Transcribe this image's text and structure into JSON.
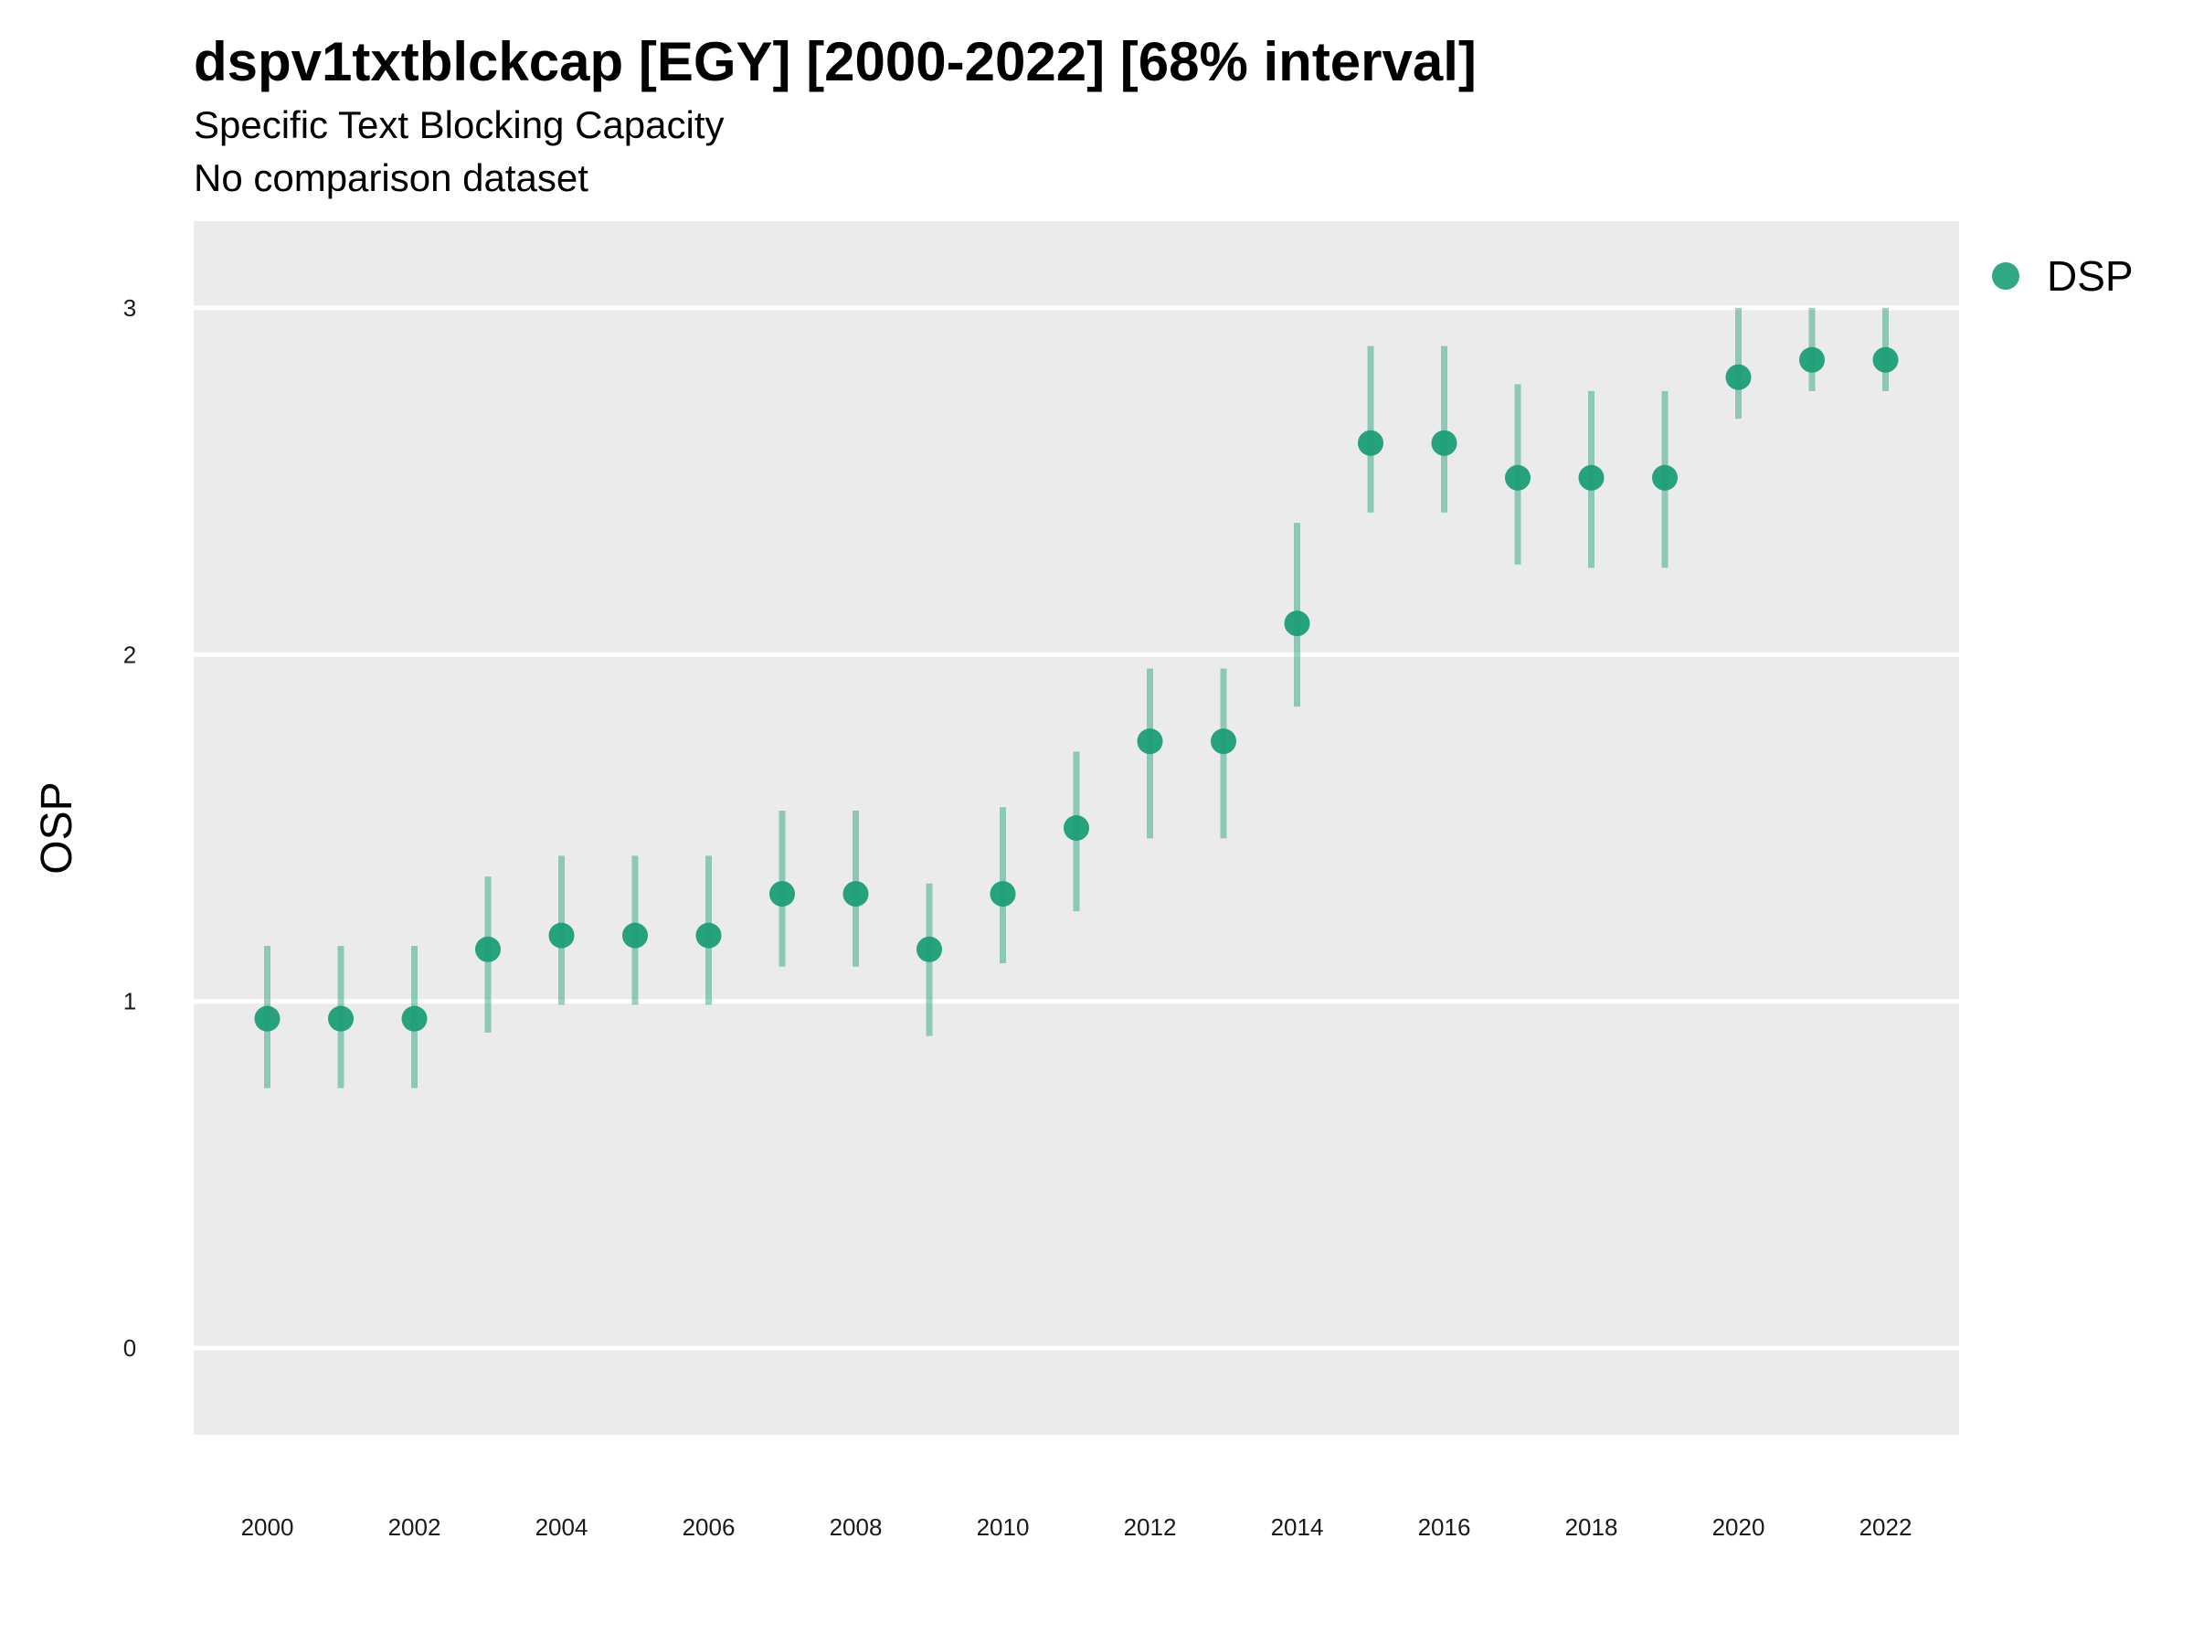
{
  "chart_data": {
    "type": "scatter",
    "title": "dspv1txtblckcap [EGY] [2000-2022] [68% interval]",
    "subtitle": "Specific Text Blocking Capacity",
    "caption": "No comparison dataset",
    "xlabel": "",
    "ylabel": "OSP",
    "x_ticks": [
      "2000",
      "2002",
      "2004",
      "2006",
      "2008",
      "2010",
      "2012",
      "2014",
      "2016",
      "2018",
      "2020",
      "2022"
    ],
    "y_ticks": [
      "0",
      "1",
      "2",
      "3"
    ],
    "xlim": [
      1999,
      2023
    ],
    "ylim": [
      -0.25,
      3.25
    ],
    "grid": true,
    "legend": "right",
    "series": [
      {
        "name": "DSP",
        "color": "#1b9e77",
        "x": [
          2000,
          2001,
          2002,
          2003,
          2004,
          2005,
          2006,
          2007,
          2008,
          2009,
          2010,
          2011,
          2012,
          2013,
          2014,
          2015,
          2016,
          2017,
          2018,
          2019,
          2020,
          2021,
          2022
        ],
        "y": [
          0.95,
          0.95,
          0.95,
          1.15,
          1.19,
          1.19,
          1.19,
          1.31,
          1.31,
          1.15,
          1.31,
          1.5,
          1.75,
          1.75,
          2.09,
          2.61,
          2.61,
          2.51,
          2.51,
          2.51,
          2.8,
          2.85,
          2.85
        ],
        "lower": [
          0.75,
          0.75,
          0.75,
          0.91,
          0.99,
          0.99,
          0.99,
          1.1,
          1.1,
          0.9,
          1.11,
          1.26,
          1.47,
          1.47,
          1.85,
          2.41,
          2.41,
          2.26,
          2.25,
          2.25,
          2.68,
          2.76,
          2.76
        ],
        "upper": [
          1.16,
          1.16,
          1.16,
          1.36,
          1.42,
          1.42,
          1.42,
          1.55,
          1.55,
          1.34,
          1.56,
          1.72,
          1.96,
          1.96,
          2.38,
          2.89,
          2.89,
          2.78,
          2.76,
          2.76,
          3.0,
          3.0,
          3.0
        ]
      }
    ]
  }
}
